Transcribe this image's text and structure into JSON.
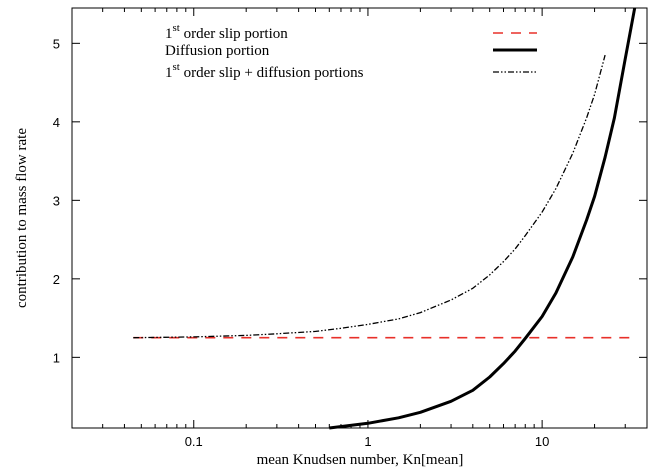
{
  "chart_data": {
    "type": "line",
    "xlabel": "mean Knudsen number, Kn[mean]",
    "ylabel": "contribution to mass flow rate",
    "xscale": "log",
    "xlim": [
      0.02,
      40
    ],
    "ylim": [
      0.1,
      5.45
    ],
    "x_ticks": [
      {
        "value": 0.1,
        "label": "0.1"
      },
      {
        "value": 1,
        "label": "1"
      },
      {
        "value": 10,
        "label": "10"
      }
    ],
    "y_ticks": [
      {
        "value": 1,
        "label": "1"
      },
      {
        "value": 2,
        "label": "2"
      },
      {
        "value": 3,
        "label": "3"
      },
      {
        "value": 4,
        "label": "4"
      },
      {
        "value": 5,
        "label": "5"
      }
    ],
    "legend_position": "top",
    "grid": false,
    "series": [
      {
        "name": "1st order slip portion",
        "name_base": "1",
        "name_sup": "st",
        "name_rest": " order slip portion",
        "color": "#e8302a",
        "style": "dashed",
        "x": [
          0.045,
          0.1,
          0.3,
          1,
          3,
          10,
          20,
          35
        ],
        "y": [
          1.25,
          1.25,
          1.25,
          1.25,
          1.25,
          1.25,
          1.25,
          1.25
        ]
      },
      {
        "name": "Diffusion portion",
        "name_base": "Diffusion portion",
        "name_sup": "",
        "name_rest": "",
        "color": "#000000",
        "style": "solid",
        "x": [
          0.6,
          1,
          1.5,
          2,
          3,
          4,
          5,
          6,
          7,
          8,
          10,
          12,
          15,
          18,
          20,
          23,
          26,
          30,
          34
        ],
        "y": [
          0.1,
          0.16,
          0.23,
          0.3,
          0.44,
          0.58,
          0.75,
          0.92,
          1.08,
          1.24,
          1.52,
          1.82,
          2.28,
          2.75,
          3.05,
          3.55,
          4.05,
          4.8,
          5.45
        ]
      },
      {
        "name": "1st order slip + diffusion portions",
        "name_base": "1",
        "name_sup": "st",
        "name_rest": " order slip + diffusion portions",
        "color": "#000000",
        "style": "dashdot",
        "x": [
          0.045,
          0.1,
          0.2,
          0.3,
          0.5,
          0.7,
          1,
          1.5,
          2,
          3,
          4,
          5,
          6,
          7,
          8,
          10,
          12,
          15,
          18,
          20,
          23
        ],
        "y": [
          1.25,
          1.26,
          1.28,
          1.3,
          1.33,
          1.37,
          1.42,
          1.49,
          1.57,
          1.73,
          1.88,
          2.05,
          2.22,
          2.38,
          2.55,
          2.85,
          3.15,
          3.6,
          4.05,
          4.35,
          4.85
        ]
      }
    ]
  }
}
